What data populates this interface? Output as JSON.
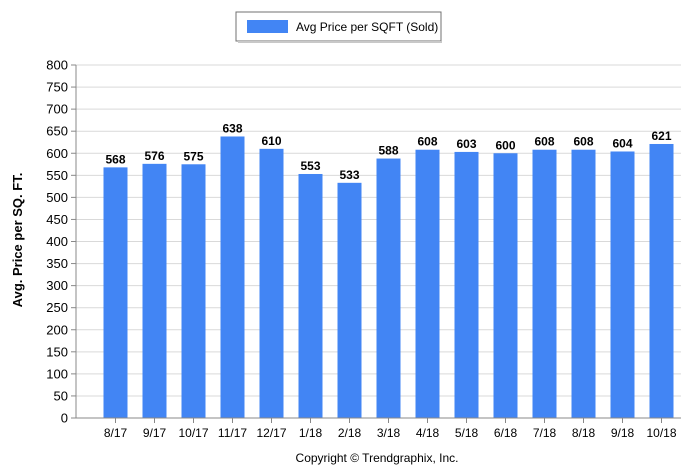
{
  "chart_data": {
    "type": "bar",
    "title": "",
    "ylabel": "Avg. Price per SQ. FT.",
    "xlabel": "",
    "ylim": [
      0,
      800
    ],
    "yticks": [
      0,
      50,
      100,
      150,
      200,
      250,
      300,
      350,
      400,
      450,
      500,
      550,
      600,
      650,
      700,
      750,
      800
    ],
    "categories": [
      "8/17",
      "9/17",
      "10/17",
      "11/17",
      "12/17",
      "1/18",
      "2/18",
      "3/18",
      "4/18",
      "5/18",
      "6/18",
      "7/18",
      "8/18",
      "9/18",
      "10/18"
    ],
    "series": [
      {
        "name": "Avg Price per SQFT (Sold)",
        "color": "#4285f4",
        "values": [
          568,
          576,
          575,
          638,
          610,
          553,
          533,
          588,
          608,
          603,
          600,
          608,
          608,
          604,
          621
        ]
      }
    ],
    "legend": {
      "position": "top-center"
    },
    "grid": true
  },
  "footer": {
    "copyright": "Copyright © Trendgraphix, Inc."
  }
}
